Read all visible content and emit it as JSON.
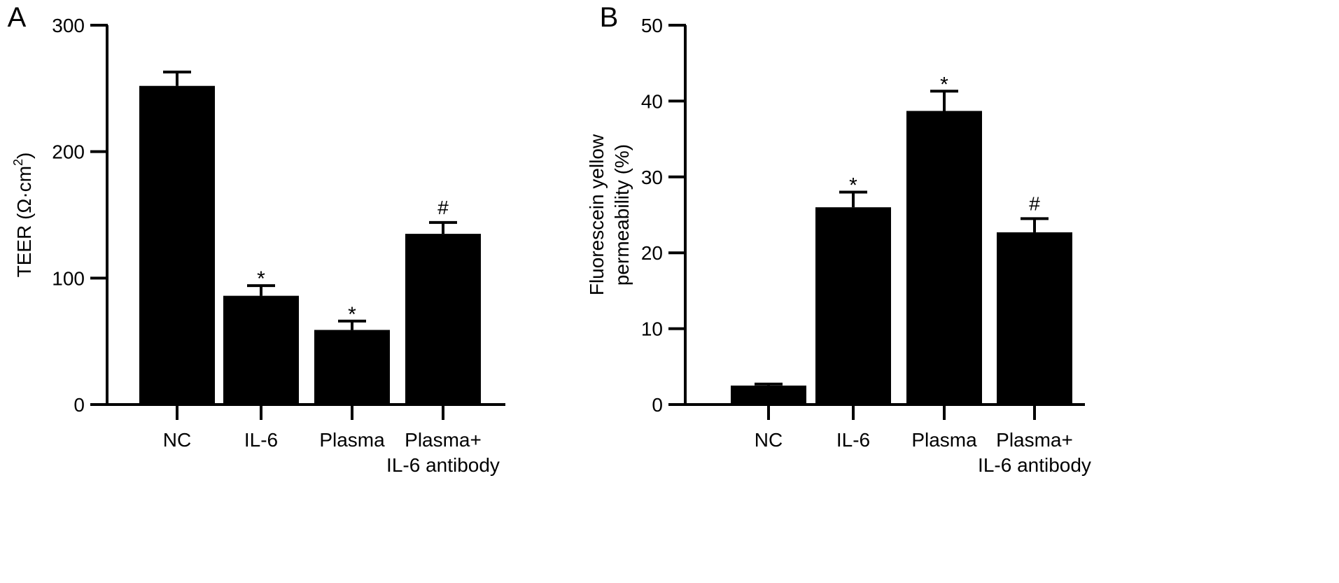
{
  "chart_data": [
    {
      "panel_label": "A",
      "type": "bar",
      "categories": [
        [
          "NC"
        ],
        [
          "IL-6"
        ],
        [
          "Plasma"
        ],
        [
          "Plasma+",
          "IL-6 antibody"
        ]
      ],
      "values": [
        252,
        86,
        59,
        135
      ],
      "error_bars": [
        11,
        8,
        7,
        9
      ],
      "annotations": [
        "",
        "*",
        "*",
        "#"
      ],
      "ylabel": {
        "main": "TEER (Ω·cm",
        "sup": "2",
        "close": ")"
      },
      "ylim": [
        0,
        300
      ],
      "yticks": [
        0,
        100,
        200,
        300
      ],
      "bar_color": "#000000",
      "grid": false
    },
    {
      "panel_label": "B",
      "type": "bar",
      "categories": [
        [
          "NC"
        ],
        [
          "IL-6"
        ],
        [
          "Plasma"
        ],
        [
          "Plasma+",
          "IL-6 antibody"
        ]
      ],
      "values": [
        2.5,
        26,
        38.7,
        22.7
      ],
      "error_bars": [
        0.2,
        2.0,
        2.6,
        1.8
      ],
      "annotations": [
        "",
        "*",
        "*",
        "#"
      ],
      "ylabel": {
        "lines": [
          "Fluorescein yellow",
          "permeability (%)"
        ]
      },
      "ylim": [
        0,
        50
      ],
      "yticks": [
        0,
        10,
        20,
        30,
        40,
        50
      ],
      "bar_color": "#000000",
      "grid": false
    }
  ]
}
